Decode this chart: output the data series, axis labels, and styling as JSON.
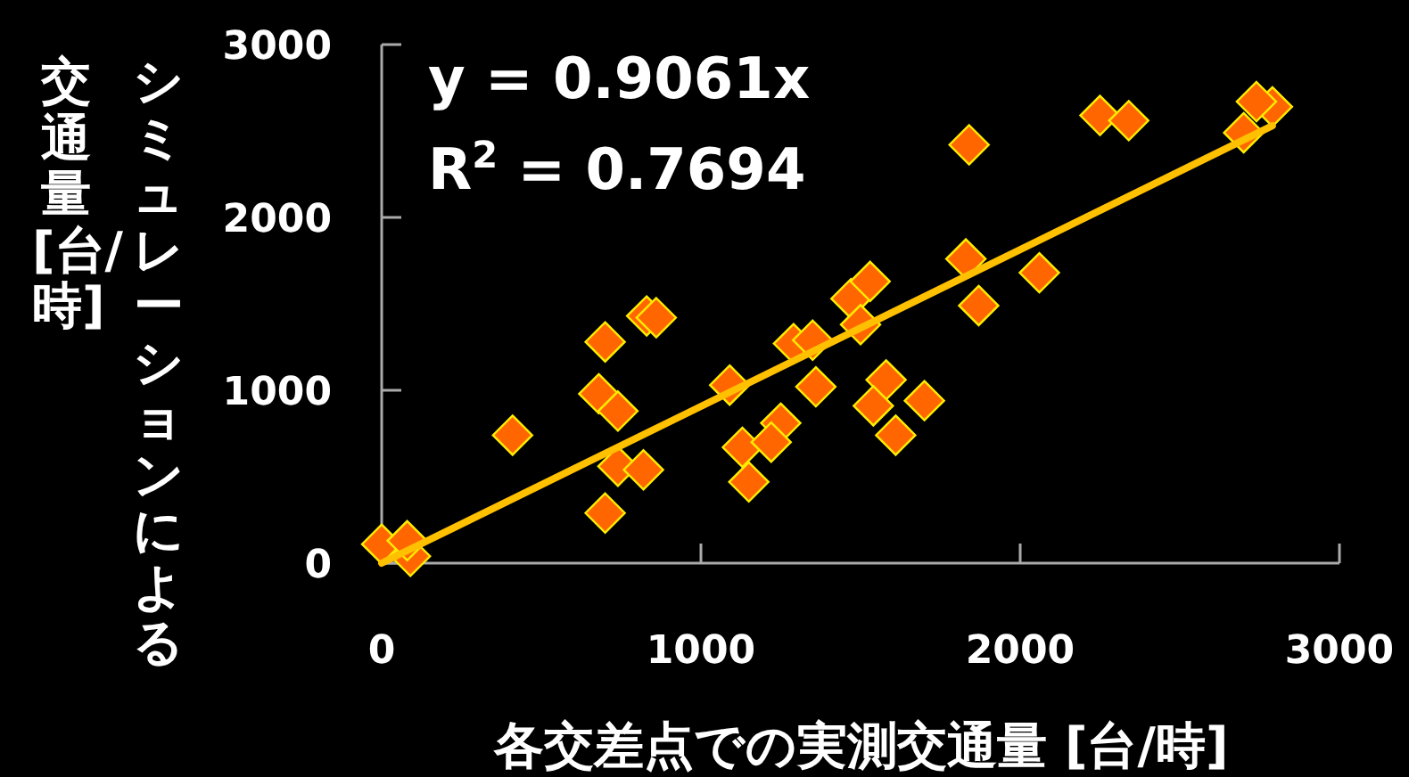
{
  "chart_data": {
    "type": "scatter",
    "xlabel": "各交差点での実測交通量 [台/時]",
    "ylabel": "シミュレーションによる交通量 [台/時]",
    "annotations": [
      "y = 0.9061x",
      "R$^{2}$ = 0.7694"
    ],
    "xlim": [
      0,
      3000
    ],
    "ylim": [
      0,
      3000
    ],
    "xticks": [
      0,
      1000,
      2000,
      3000
    ],
    "yticks": [
      0,
      1000,
      2000,
      3000
    ],
    "series": [
      {
        "color": "#ff6600",
        "marker": "diamond",
        "x": [
          0,
          90,
          80,
          410,
          700,
          680,
          740,
          740,
          820,
          700,
          830,
          860,
          1090,
          1130,
          1150,
          1250,
          1220,
          1290,
          1350,
          1360,
          1840,
          2250,
          2340,
          2700,
          2790,
          2740,
          1830,
          2060,
          1870,
          1470,
          1530,
          1500,
          1580,
          1700,
          1540,
          1610
        ],
        "values": [
          110,
          40,
          130,
          740,
          1280,
          980,
          880,
          560,
          540,
          290,
          1430,
          1420,
          1030,
          670,
          470,
          810,
          700,
          1270,
          1290,
          1020,
          2420,
          2590,
          2560,
          2490,
          2640,
          2670,
          1760,
          1680,
          1490,
          1530,
          1630,
          1380,
          1060,
          940,
          910,
          740
        ]
      },
      {
        "type": "line",
        "color": "#ffc000",
        "marker": "none",
        "x": [
          0,
          2790
        ],
        "values": [
          0,
          2530
        ]
      }
    ]
  }
}
